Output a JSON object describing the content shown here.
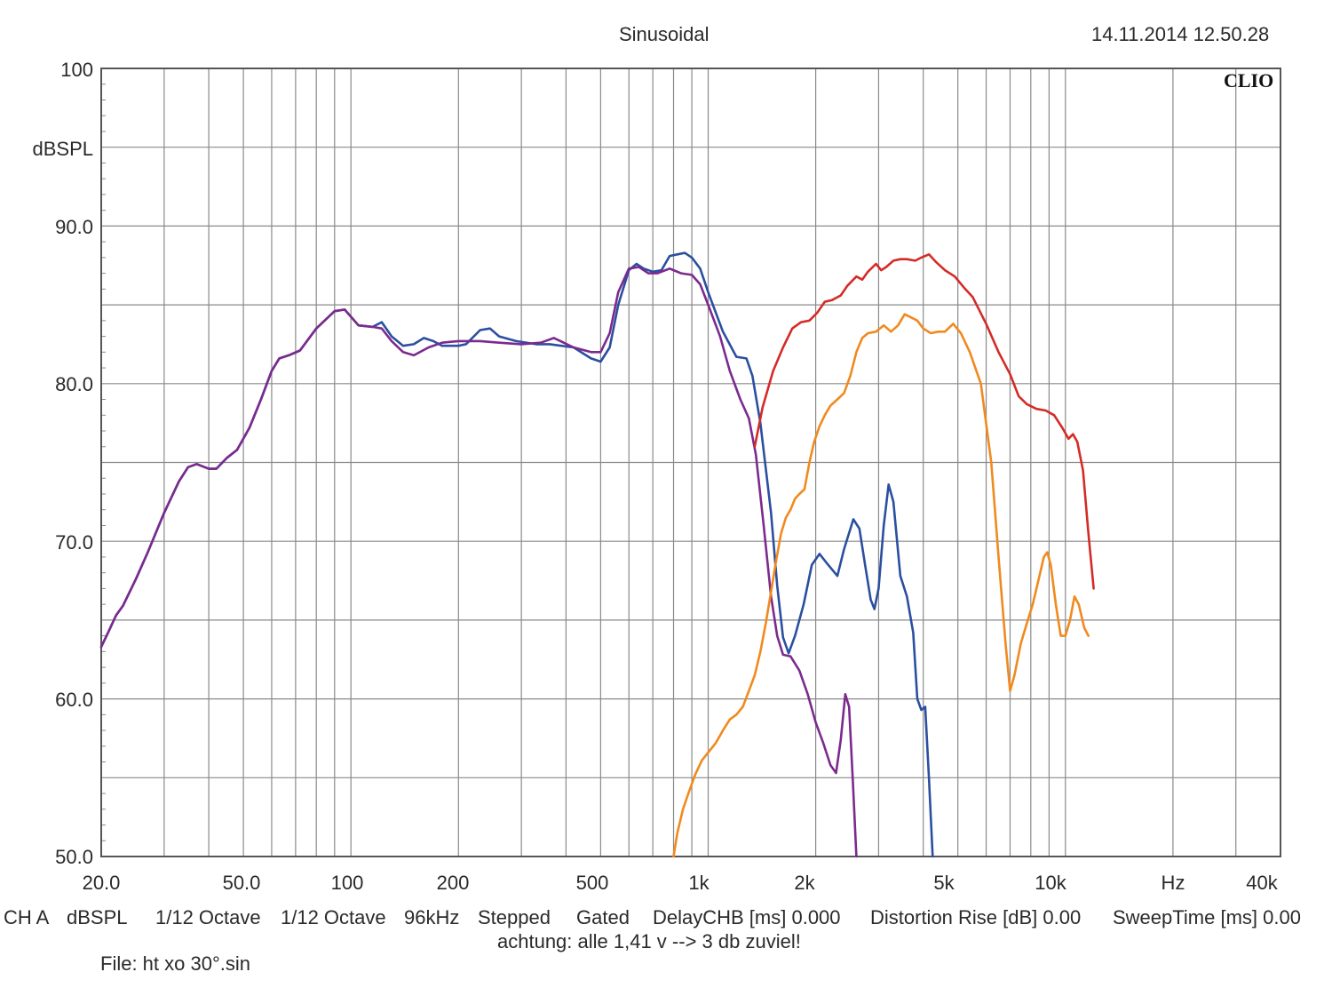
{
  "header": {
    "title": "Sinusoidal",
    "datetime": "14.11.2014 12.50.28",
    "logo": "CLIO"
  },
  "chart_data": {
    "type": "line",
    "xscale": "log",
    "xlim": [
      20,
      40000
    ],
    "ylim": [
      50,
      100
    ],
    "yunit_label": "dBSPL",
    "ytick_labels": [
      "100",
      "90.0",
      "80.0",
      "70.0",
      "60.0",
      "50.0"
    ],
    "yticks": [
      100,
      90,
      80,
      70,
      60,
      50
    ],
    "xtick_labels": [
      "20.0",
      "50.0",
      "100",
      "200",
      "500",
      "1k",
      "2k",
      "5k",
      "10k",
      "Hz",
      "40k"
    ],
    "xticks": [
      20,
      50,
      100,
      200,
      500,
      1000,
      2000,
      5000,
      10000,
      20000,
      40000
    ],
    "grid": true,
    "series": [
      {
        "color": "#2b4fa0",
        "points": [
          [
            20,
            63.3
          ],
          [
            21,
            64.3
          ],
          [
            22,
            65.3
          ],
          [
            23,
            65.9
          ],
          [
            25,
            67.6
          ],
          [
            27,
            69.3
          ],
          [
            30,
            71.8
          ],
          [
            33,
            73.8
          ],
          [
            35,
            74.7
          ],
          [
            37,
            74.9
          ],
          [
            40,
            74.6
          ],
          [
            42,
            74.6
          ],
          [
            45,
            75.3
          ],
          [
            48,
            75.8
          ],
          [
            52,
            77.2
          ],
          [
            56,
            79.0
          ],
          [
            60,
            80.8
          ],
          [
            63,
            81.6
          ],
          [
            67,
            81.8
          ],
          [
            72,
            82.1
          ],
          [
            80,
            83.5
          ],
          [
            90,
            84.6
          ],
          [
            96,
            84.7
          ],
          [
            105,
            83.7
          ],
          [
            115,
            83.6
          ],
          [
            122,
            83.9
          ],
          [
            130,
            83.0
          ],
          [
            140,
            82.4
          ],
          [
            150,
            82.5
          ],
          [
            160,
            82.9
          ],
          [
            170,
            82.7
          ],
          [
            180,
            82.4
          ],
          [
            200,
            82.4
          ],
          [
            210,
            82.5
          ],
          [
            230,
            83.4
          ],
          [
            245,
            83.5
          ],
          [
            260,
            83.0
          ],
          [
            290,
            82.7
          ],
          [
            330,
            82.5
          ],
          [
            360,
            82.5
          ],
          [
            420,
            82.3
          ],
          [
            470,
            81.6
          ],
          [
            500,
            81.4
          ],
          [
            530,
            82.3
          ],
          [
            560,
            85.0
          ],
          [
            600,
            87.2
          ],
          [
            630,
            87.6
          ],
          [
            660,
            87.3
          ],
          [
            700,
            87.1
          ],
          [
            740,
            87.2
          ],
          [
            780,
            88.1
          ],
          [
            820,
            88.2
          ],
          [
            860,
            88.3
          ],
          [
            900,
            88.0
          ],
          [
            950,
            87.3
          ],
          [
            1000,
            85.8
          ],
          [
            1100,
            83.3
          ],
          [
            1200,
            81.7
          ],
          [
            1280,
            81.6
          ],
          [
            1330,
            80.5
          ],
          [
            1400,
            77.5
          ],
          [
            1500,
            71.8
          ],
          [
            1560,
            67.2
          ],
          [
            1620,
            63.9
          ],
          [
            1680,
            62.9
          ],
          [
            1750,
            64.0
          ],
          [
            1850,
            66.0
          ],
          [
            1950,
            68.5
          ],
          [
            2050,
            69.2
          ],
          [
            2150,
            68.6
          ],
          [
            2300,
            67.8
          ],
          [
            2400,
            69.5
          ],
          [
            2550,
            71.4
          ],
          [
            2650,
            70.8
          ],
          [
            2750,
            68.5
          ],
          [
            2850,
            66.3
          ],
          [
            2920,
            65.7
          ],
          [
            3000,
            67.0
          ],
          [
            3100,
            71.0
          ],
          [
            3200,
            73.6
          ],
          [
            3300,
            72.5
          ],
          [
            3450,
            67.8
          ],
          [
            3600,
            66.5
          ],
          [
            3750,
            64.2
          ],
          [
            3850,
            60.0
          ],
          [
            3950,
            59.3
          ],
          [
            4050,
            59.5
          ],
          [
            4150,
            55.0
          ],
          [
            4250,
            50.0
          ]
        ]
      },
      {
        "color": "#7b2a8e",
        "points": [
          [
            20,
            63.3
          ],
          [
            21,
            64.3
          ],
          [
            22,
            65.3
          ],
          [
            23,
            65.9
          ],
          [
            25,
            67.6
          ],
          [
            27,
            69.3
          ],
          [
            30,
            71.8
          ],
          [
            33,
            73.8
          ],
          [
            35,
            74.7
          ],
          [
            37,
            74.9
          ],
          [
            40,
            74.6
          ],
          [
            42,
            74.6
          ],
          [
            45,
            75.3
          ],
          [
            48,
            75.8
          ],
          [
            52,
            77.2
          ],
          [
            56,
            79.0
          ],
          [
            60,
            80.8
          ],
          [
            63,
            81.6
          ],
          [
            67,
            81.8
          ],
          [
            72,
            82.1
          ],
          [
            80,
            83.5
          ],
          [
            90,
            84.6
          ],
          [
            96,
            84.7
          ],
          [
            105,
            83.7
          ],
          [
            115,
            83.6
          ],
          [
            122,
            83.5
          ],
          [
            130,
            82.7
          ],
          [
            140,
            82.0
          ],
          [
            150,
            81.8
          ],
          [
            165,
            82.3
          ],
          [
            180,
            82.6
          ],
          [
            200,
            82.7
          ],
          [
            230,
            82.7
          ],
          [
            260,
            82.6
          ],
          [
            300,
            82.5
          ],
          [
            340,
            82.6
          ],
          [
            370,
            82.9
          ],
          [
            420,
            82.3
          ],
          [
            470,
            82.0
          ],
          [
            500,
            82.0
          ],
          [
            530,
            83.2
          ],
          [
            560,
            85.8
          ],
          [
            600,
            87.3
          ],
          [
            640,
            87.4
          ],
          [
            680,
            87.0
          ],
          [
            720,
            87.0
          ],
          [
            780,
            87.3
          ],
          [
            840,
            87.0
          ],
          [
            900,
            86.9
          ],
          [
            950,
            86.3
          ],
          [
            1000,
            85.0
          ],
          [
            1080,
            83.0
          ],
          [
            1150,
            80.8
          ],
          [
            1230,
            79.0
          ],
          [
            1300,
            77.8
          ],
          [
            1360,
            75.5
          ],
          [
            1430,
            71.0
          ],
          [
            1500,
            66.5
          ],
          [
            1560,
            64.0
          ],
          [
            1620,
            62.8
          ],
          [
            1700,
            62.7
          ],
          [
            1800,
            61.8
          ],
          [
            1900,
            60.3
          ],
          [
            2000,
            58.5
          ],
          [
            2100,
            57.2
          ],
          [
            2200,
            55.8
          ],
          [
            2280,
            55.3
          ],
          [
            2350,
            57.4
          ],
          [
            2420,
            60.3
          ],
          [
            2480,
            59.5
          ],
          [
            2540,
            54.8
          ],
          [
            2600,
            50.0
          ]
        ]
      },
      {
        "color": "#d42b27",
        "points": [
          [
            1350,
            76.0
          ],
          [
            1420,
            78.5
          ],
          [
            1520,
            80.8
          ],
          [
            1620,
            82.3
          ],
          [
            1720,
            83.5
          ],
          [
            1820,
            83.9
          ],
          [
            1920,
            84.0
          ],
          [
            2020,
            84.5
          ],
          [
            2120,
            85.2
          ],
          [
            2220,
            85.3
          ],
          [
            2350,
            85.6
          ],
          [
            2450,
            86.2
          ],
          [
            2600,
            86.8
          ],
          [
            2700,
            86.6
          ],
          [
            2800,
            87.1
          ],
          [
            2950,
            87.6
          ],
          [
            3050,
            87.2
          ],
          [
            3150,
            87.4
          ],
          [
            3300,
            87.8
          ],
          [
            3450,
            87.9
          ],
          [
            3600,
            87.9
          ],
          [
            3800,
            87.8
          ],
          [
            3950,
            88.0
          ],
          [
            4150,
            88.2
          ],
          [
            4350,
            87.7
          ],
          [
            4600,
            87.2
          ],
          [
            4900,
            86.8
          ],
          [
            5200,
            86.1
          ],
          [
            5500,
            85.5
          ],
          [
            6000,
            83.8
          ],
          [
            6500,
            82.0
          ],
          [
            7000,
            80.6
          ],
          [
            7400,
            79.2
          ],
          [
            7800,
            78.7
          ],
          [
            8300,
            78.4
          ],
          [
            8800,
            78.3
          ],
          [
            9300,
            78.0
          ],
          [
            9800,
            77.2
          ],
          [
            10200,
            76.5
          ],
          [
            10500,
            76.8
          ],
          [
            10800,
            76.3
          ],
          [
            11200,
            74.5
          ],
          [
            11600,
            70.5
          ],
          [
            12000,
            67.0
          ]
        ]
      },
      {
        "color": "#f08a1f",
        "points": [
          [
            800,
            50.0
          ],
          [
            820,
            51.5
          ],
          [
            850,
            53.0
          ],
          [
            880,
            54.0
          ],
          [
            920,
            55.2
          ],
          [
            960,
            56.1
          ],
          [
            1000,
            56.6
          ],
          [
            1050,
            57.2
          ],
          [
            1100,
            58.0
          ],
          [
            1150,
            58.7
          ],
          [
            1200,
            59.0
          ],
          [
            1250,
            59.5
          ],
          [
            1300,
            60.5
          ],
          [
            1350,
            61.5
          ],
          [
            1400,
            63.0
          ],
          [
            1450,
            64.8
          ],
          [
            1500,
            66.8
          ],
          [
            1550,
            68.8
          ],
          [
            1600,
            70.5
          ],
          [
            1650,
            71.5
          ],
          [
            1700,
            72.0
          ],
          [
            1750,
            72.7
          ],
          [
            1800,
            73.0
          ],
          [
            1860,
            73.3
          ],
          [
            1920,
            75.0
          ],
          [
            1980,
            76.3
          ],
          [
            2050,
            77.3
          ],
          [
            2120,
            78.0
          ],
          [
            2200,
            78.6
          ],
          [
            2300,
            79.0
          ],
          [
            2400,
            79.4
          ],
          [
            2500,
            80.5
          ],
          [
            2600,
            82.0
          ],
          [
            2700,
            82.9
          ],
          [
            2800,
            83.2
          ],
          [
            2950,
            83.3
          ],
          [
            3100,
            83.7
          ],
          [
            3250,
            83.3
          ],
          [
            3400,
            83.7
          ],
          [
            3550,
            84.4
          ],
          [
            3700,
            84.2
          ],
          [
            3850,
            84.0
          ],
          [
            4000,
            83.5
          ],
          [
            4200,
            83.2
          ],
          [
            4400,
            83.3
          ],
          [
            4600,
            83.3
          ],
          [
            4850,
            83.8
          ],
          [
            5100,
            83.2
          ],
          [
            5400,
            82.0
          ],
          [
            5800,
            80.0
          ],
          [
            6200,
            75.0
          ],
          [
            6500,
            69.0
          ],
          [
            6800,
            63.5
          ],
          [
            7000,
            60.5
          ],
          [
            7200,
            61.5
          ],
          [
            7500,
            63.5
          ],
          [
            7800,
            64.8
          ],
          [
            8100,
            66.0
          ],
          [
            8400,
            67.5
          ],
          [
            8700,
            69.0
          ],
          [
            8900,
            69.3
          ],
          [
            9100,
            68.5
          ],
          [
            9400,
            66.0
          ],
          [
            9700,
            64.0
          ],
          [
            10000,
            64.0
          ],
          [
            10300,
            65.0
          ],
          [
            10600,
            66.5
          ],
          [
            10900,
            66.0
          ],
          [
            11300,
            64.5
          ],
          [
            11600,
            64.0
          ]
        ]
      }
    ]
  },
  "footer": {
    "line1": [
      "CH A",
      "dBSPL",
      "1/12 Octave",
      "1/12 Octave",
      "96kHz",
      "Stepped",
      "Gated",
      "DelayCHB [ms] 0.000",
      "Distortion Rise [dB] 0.00",
      "SweepTime [ms] 0.00"
    ],
    "note": "achtung: alle 1,41 v --> 3 db zuviel!",
    "file": "File: ht xo 30°.sin"
  },
  "colors": {
    "grid": "#8a8a8a",
    "frame": "#555555"
  }
}
